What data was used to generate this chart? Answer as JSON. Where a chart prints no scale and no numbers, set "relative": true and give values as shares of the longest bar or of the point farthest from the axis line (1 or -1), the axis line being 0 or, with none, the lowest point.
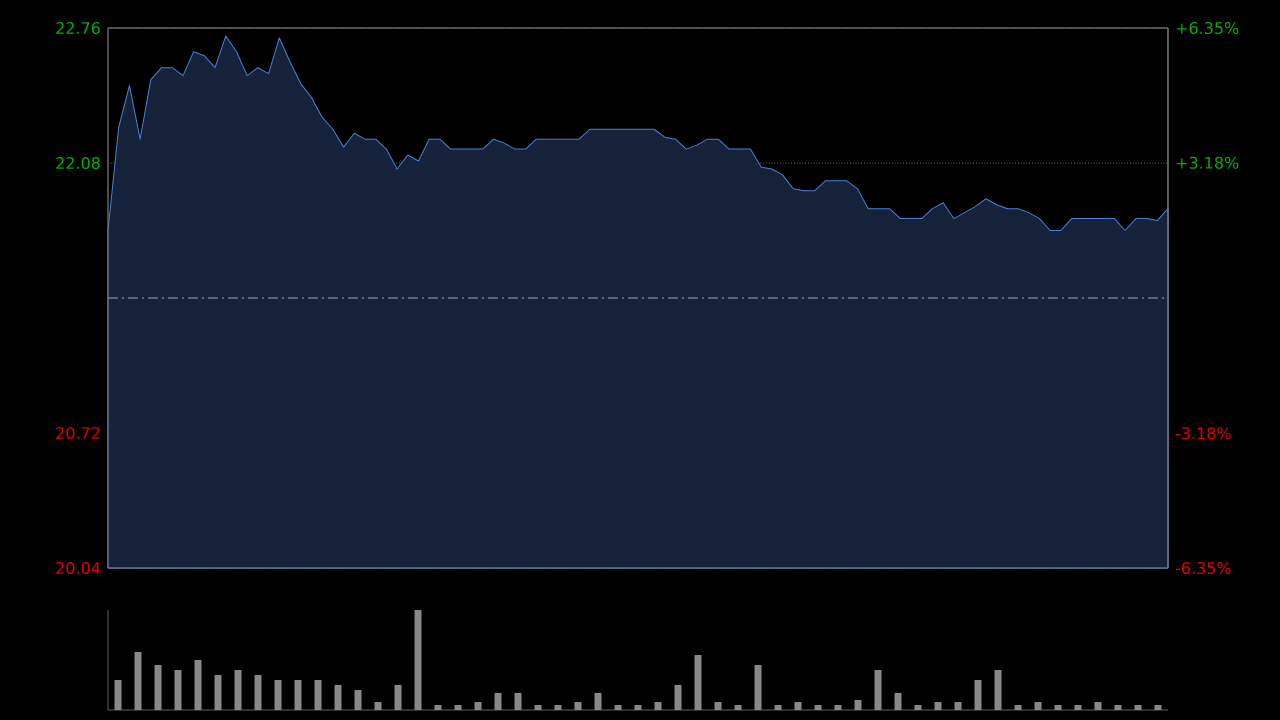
{
  "chart_data": [
    {
      "type": "area",
      "categories": [
        null,
        null,
        null,
        null,
        null,
        null,
        null,
        null,
        null,
        null,
        null,
        null,
        null,
        null,
        null,
        null,
        null,
        null,
        null,
        null,
        null,
        null,
        null,
        null,
        null,
        null,
        null,
        null,
        null,
        null,
        null,
        null,
        null,
        null,
        null,
        null,
        null,
        null,
        null,
        null,
        null,
        null,
        null,
        null,
        null,
        null,
        null,
        null,
        null,
        null,
        null,
        null,
        null,
        null,
        null,
        null,
        null,
        null,
        null,
        null,
        null,
        null,
        null,
        null,
        null,
        null,
        null,
        null,
        null,
        null,
        null,
        null,
        null,
        null,
        null,
        null,
        null,
        null,
        null,
        null,
        null,
        null,
        null,
        null,
        null,
        null,
        null,
        null,
        null,
        null,
        null,
        null,
        null,
        null,
        null,
        null,
        null,
        null,
        null,
        null
      ],
      "series": [
        {
          "color": "#4a80d8",
          "values": [
            21.74,
            22.26,
            22.47,
            22.2,
            22.5,
            22.56,
            22.56,
            22.52,
            22.64,
            22.62,
            22.56,
            22.72,
            22.64,
            22.52,
            22.56,
            22.53,
            22.71,
            22.59,
            22.48,
            22.41,
            22.31,
            22.25,
            22.16,
            22.23,
            22.2,
            22.2,
            22.15,
            22.05,
            22.12,
            22.09,
            22.2,
            22.2,
            22.15,
            22.15,
            22.15,
            22.15,
            22.2,
            22.18,
            22.15,
            22.15,
            22.2,
            22.2,
            22.2,
            22.2,
            22.2,
            22.25,
            22.25,
            22.25,
            22.25,
            22.25,
            22.25,
            22.25,
            22.21,
            22.2,
            22.15,
            22.17,
            22.2,
            22.2,
            22.15,
            22.15,
            22.15,
            22.06,
            22.05,
            22.02,
            21.95,
            21.94,
            21.94,
            21.99,
            21.99,
            21.99,
            21.95,
            21.85,
            21.85,
            21.85,
            21.8,
            21.8,
            21.8,
            21.85,
            21.88,
            21.8,
            21.83,
            21.86,
            21.9,
            21.87,
            21.85,
            21.85,
            21.83,
            21.8,
            21.74,
            21.74,
            21.8,
            21.8,
            21.8,
            21.8,
            21.8,
            21.74,
            21.8,
            21.8,
            21.79,
            21.85
          ]
        }
      ],
      "ylim": [
        20.04,
        22.76
      ],
      "yticks": [
        20.04,
        20.72,
        22.08,
        22.76
      ],
      "y2lim": [
        -6.35,
        6.35
      ],
      "y2ticks": [
        {
          "value": -6.35,
          "label": "-6.35%"
        },
        {
          "value": -3.18,
          "label": "-3.18%"
        },
        {
          "value": 3.18,
          "label": "+3.18%"
        },
        {
          "value": 6.35,
          "label": "+6.35%"
        }
      ],
      "ref_lines": [
        {
          "axis": "y",
          "value": 21.4,
          "color": "#aaaaaa",
          "line_style": "dashed"
        }
      ],
      "grid": "y"
    },
    {
      "type": "bar",
      "relative": true,
      "categories": [
        null,
        null,
        null,
        null,
        null,
        null,
        null,
        null,
        null,
        null,
        null,
        null,
        null,
        null,
        null,
        null,
        null,
        null,
        null,
        null,
        null,
        null,
        null,
        null,
        null,
        null,
        null,
        null,
        null,
        null,
        null,
        null,
        null,
        null,
        null,
        null,
        null,
        null,
        null,
        null,
        null,
        null,
        null,
        null,
        null,
        null,
        null,
        null,
        null,
        null,
        null,
        null,
        null
      ],
      "series": [
        {
          "color": "#888888",
          "values": [
            0.3,
            0.58,
            0.45,
            0.4,
            0.5,
            0.35,
            0.4,
            0.35,
            0.3,
            0.3,
            0.3,
            0.25,
            0.2,
            0.08,
            0.25,
            1.0,
            0.05,
            0.05,
            0.08,
            0.17,
            0.17,
            0.05,
            0.05,
            0.08,
            0.17,
            0.05,
            0.05,
            0.08,
            0.25,
            0.55,
            0.08,
            0.05,
            0.45,
            0.05,
            0.08,
            0.05,
            0.05,
            0.1,
            0.4,
            0.17,
            0.05,
            0.08,
            0.08,
            0.3,
            0.4,
            0.05,
            0.08,
            0.05,
            0.05,
            0.08,
            0.05,
            0.05,
            0.05
          ]
        }
      ]
    }
  ]
}
